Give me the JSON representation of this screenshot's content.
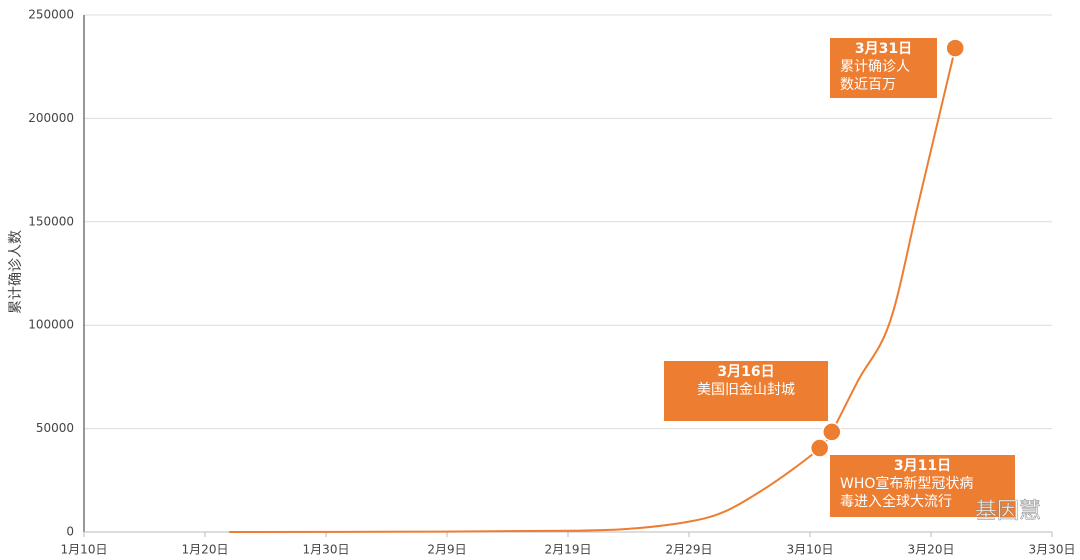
{
  "chart_data": {
    "type": "line",
    "y_label": "累计确诊人数",
    "x": [
      22,
      40,
      50,
      55,
      60,
      63,
      66,
      68.5,
      70.8,
      71.8,
      74,
      76.6,
      79,
      82
    ],
    "values": [
      0,
      200,
      600,
      1500,
      5000,
      10000,
      20000,
      30000,
      40600,
      48400,
      73500,
      101500,
      160000,
      234000
    ],
    "color": "#ed7d31",
    "xlim": [
      10,
      90
    ],
    "xticks": [
      {
        "value": 10,
        "label": "1月10日"
      },
      {
        "value": 20,
        "label": "1月20日"
      },
      {
        "value": 30,
        "label": "1月30日"
      },
      {
        "value": 40,
        "label": "2月9日"
      },
      {
        "value": 50,
        "label": "2月19日"
      },
      {
        "value": 60,
        "label": "2月29日"
      },
      {
        "value": 70,
        "label": "3月10日"
      },
      {
        "value": 80,
        "label": "3月20日"
      },
      {
        "value": 90,
        "label": "3月30日"
      }
    ],
    "ylim": [
      0,
      250000
    ],
    "yticks": [
      0,
      50000,
      100000,
      150000,
      200000,
      250000
    ],
    "grid": true,
    "annotations": [
      {
        "title": "3月11日",
        "lines": [
          "WHO宣布新型冠状病",
          "毒进入全球大流行"
        ],
        "x": 70.8,
        "y": 40600
      },
      {
        "title": "3月16日",
        "lines": [
          "美国旧金山封城"
        ],
        "x": 71.8,
        "y": 48400
      },
      {
        "title": "3月31日",
        "lines": [
          "累计确诊人",
          "数近百万"
        ],
        "x": 82,
        "y": 234000
      }
    ],
    "watermark": "基因慧"
  }
}
